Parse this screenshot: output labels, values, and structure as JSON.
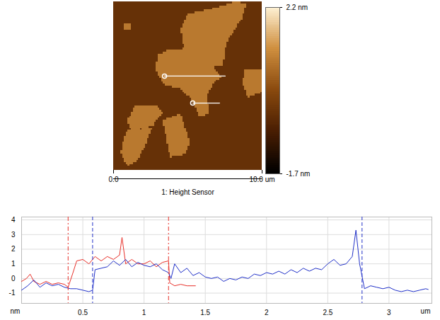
{
  "chart_data": [
    {
      "type": "image",
      "title": "1: Height Sensor",
      "xlim": [
        0,
        10
      ],
      "ylim": [
        0,
        10
      ],
      "xticks": [
        {
          "value": 0,
          "label": "0.0"
        },
        {
          "value": 10,
          "label": "10.0 um"
        }
      ],
      "tick_labels": "x",
      "background": -0.3,
      "regions": [
        {
          "height": 0.9,
          "points": [
            [
              4.52,
              1.6
            ],
            [
              5.0,
              0.76
            ],
            [
              6.67,
              0.42
            ],
            [
              8.1,
              0.04
            ],
            [
              8.95,
              0.08
            ],
            [
              8.67,
              0.97
            ],
            [
              7.62,
              2.44
            ],
            [
              7.38,
              3.78
            ],
            [
              5.71,
              4.03
            ],
            [
              4.86,
              3.28
            ]
          ]
        },
        {
          "height": 0.9,
          "points": [
            [
              2.95,
              3.19
            ],
            [
              3.71,
              2.86
            ],
            [
              5.14,
              2.77
            ],
            [
              6.67,
              3.91
            ],
            [
              7.24,
              4.45
            ],
            [
              6.67,
              4.96
            ],
            [
              6.29,
              5.59
            ],
            [
              6.48,
              6.64
            ],
            [
              5.81,
              6.85
            ],
            [
              5.24,
              5.8
            ],
            [
              4.52,
              5.17
            ],
            [
              3.43,
              4.96
            ],
            [
              2.86,
              4.12
            ]
          ]
        },
        {
          "height": 0.9,
          "points": [
            [
              8.81,
              4.03
            ],
            [
              10,
              4.03
            ],
            [
              10,
              5.38
            ],
            [
              9.05,
              5.71
            ],
            [
              8.71,
              4.87
            ]
          ]
        },
        {
          "height": 0.9,
          "points": [
            [
              1.43,
              6.22
            ],
            [
              2.86,
              6.13
            ],
            [
              3.33,
              6.64
            ],
            [
              2.62,
              7.39
            ],
            [
              1.19,
              7.69
            ],
            [
              0.95,
              7.06
            ]
          ]
        },
        {
          "height": 0.9,
          "points": [
            [
              0.86,
              7.69
            ],
            [
              2.62,
              7.48
            ],
            [
              2.14,
              8.53
            ],
            [
              1.67,
              9.37
            ],
            [
              0.95,
              9.79
            ],
            [
              0.48,
              8.95
            ]
          ]
        },
        {
          "height": 0.9,
          "points": [
            [
              3.33,
              7.06
            ],
            [
              4.52,
              6.64
            ],
            [
              5.14,
              8.32
            ],
            [
              4.86,
              9.08
            ],
            [
              3.81,
              9.24
            ],
            [
              3.57,
              8.11
            ]
          ]
        },
        {
          "height": 0.9,
          "points": [
            [
              0.67,
              1.34
            ],
            [
              1.24,
              1.3
            ],
            [
              1.24,
              1.68
            ],
            [
              0.71,
              1.72
            ]
          ]
        }
      ],
      "profiles": [
        [
          [
            3.43,
            4.41
          ],
          [
            7.52,
            4.41
          ]
        ],
        [
          [
            5.33,
            6.01
          ],
          [
            7.14,
            6.01
          ]
        ]
      ],
      "colorbar": {
        "range": [
          -1.7,
          2.2
        ],
        "ticks": [
          {
            "value": 2.2,
            "label": "2.2 nm"
          },
          {
            "value": -1.7,
            "label": "-1.7 nm"
          }
        ]
      }
    },
    {
      "type": "line",
      "x_label": "um",
      "y_label": "nm",
      "xlim": [
        0,
        3.35
      ],
      "ylim": [
        -1.7,
        4.2
      ],
      "xticks": [
        0.5,
        1,
        1.5,
        2,
        2.5,
        3
      ],
      "yticks": [
        4,
        3,
        2,
        1,
        0,
        -1
      ],
      "grid": true,
      "series": [
        {
          "color": "#e8302a",
          "cursors": [
            0.38,
            1.2
          ],
          "x": [
            0,
            0.04,
            0.07,
            0.1,
            0.15,
            0.2,
            0.25,
            0.3,
            0.35,
            0.38,
            0.42,
            0.45,
            0.5,
            0.55,
            0.6,
            0.65,
            0.7,
            0.75,
            0.8,
            0.82,
            0.85,
            0.9,
            0.95,
            1.0,
            1.05,
            1.1,
            1.15,
            1.2,
            1.21,
            1.25,
            1.3,
            1.35,
            1.42
          ],
          "values": [
            -0.2,
            0.0,
            0.3,
            -0.2,
            -0.4,
            -0.2,
            -0.4,
            -0.3,
            -0.4,
            -0.6,
            0.4,
            1.2,
            1.3,
            1.0,
            1.5,
            1.2,
            1.5,
            1.3,
            1.6,
            2.8,
            1.0,
            1.3,
            1.0,
            1.0,
            1.2,
            0.8,
            1.1,
            1.2,
            -0.3,
            -0.5,
            -0.4,
            -0.5,
            -0.5
          ]
        },
        {
          "color": "#2030c8",
          "cursors": [
            0.58,
            2.78
          ],
          "x": [
            0,
            0.05,
            0.1,
            0.15,
            0.2,
            0.25,
            0.3,
            0.35,
            0.4,
            0.45,
            0.5,
            0.55,
            0.58,
            0.6,
            0.65,
            0.7,
            0.75,
            0.8,
            0.85,
            0.9,
            0.95,
            1.0,
            1.05,
            1.1,
            1.15,
            1.2,
            1.22,
            1.25,
            1.3,
            1.35,
            1.4,
            1.45,
            1.5,
            1.55,
            1.6,
            1.65,
            1.7,
            1.75,
            1.8,
            1.85,
            1.9,
            1.95,
            2.0,
            2.05,
            2.1,
            2.15,
            2.2,
            2.25,
            2.3,
            2.35,
            2.4,
            2.45,
            2.5,
            2.55,
            2.6,
            2.65,
            2.7,
            2.73,
            2.76,
            2.8,
            2.85,
            2.9,
            2.95,
            3.0,
            3.05,
            3.1,
            3.15,
            3.2,
            3.25,
            3.3,
            3.32
          ],
          "values": [
            -0.8,
            -0.5,
            -0.1,
            -0.6,
            -0.3,
            -0.5,
            -0.4,
            -0.6,
            -0.7,
            -0.7,
            -0.8,
            -0.9,
            -0.8,
            0.6,
            0.7,
            0.8,
            1.2,
            0.9,
            1.3,
            0.8,
            1.1,
            0.9,
            0.8,
            1.0,
            0.6,
            0.4,
            0.0,
            1.0,
            0.4,
            0.7,
            0.2,
            0.4,
            0.1,
            0.0,
            0.1,
            -0.2,
            0.0,
            -0.1,
            0.1,
            0.0,
            0.3,
            0.2,
            0.4,
            0.3,
            0.5,
            0.3,
            0.6,
            0.4,
            0.7,
            0.5,
            0.7,
            0.6,
            1.0,
            1.3,
            0.9,
            1.0,
            1.5,
            3.3,
            1.0,
            -0.7,
            -0.5,
            -0.6,
            -0.7,
            -0.6,
            -0.8,
            -0.9,
            -0.8,
            -0.9,
            -0.8,
            -0.7,
            -0.75
          ]
        }
      ]
    }
  ]
}
